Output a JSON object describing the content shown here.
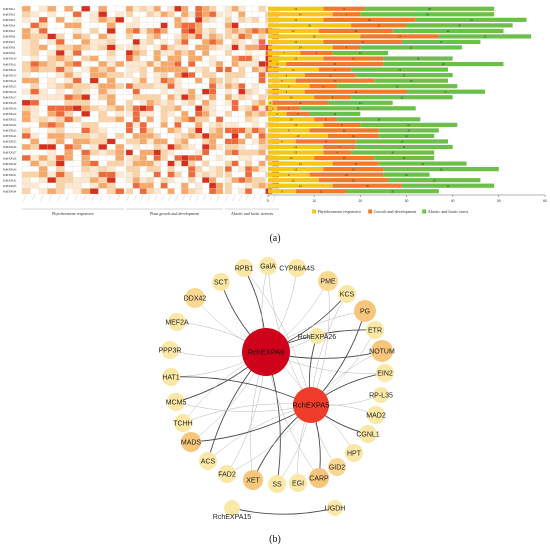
{
  "panel_a": {
    "caption": "(a)",
    "genes": [
      "RchEXPA1",
      "RchEXPA2",
      "RchEXPA3",
      "RchEXPA4",
      "RchEXPA5",
      "RchEXPA6",
      "RchEXPA7",
      "RchEXPA8",
      "RchEXPA9",
      "RchEXPA10",
      "RchEXPA11",
      "RchEXPA12",
      "RchEXPA13",
      "RchEXPA14",
      "RchEXPA15",
      "RchEXPA16",
      "RchEXPA17",
      "RchEXPA18",
      "RchEXPA19",
      "RchEXPA20",
      "RchEXPA21",
      "RchEXPA22",
      "RchEXPA23",
      "RchEXPA24",
      "RchEXPA25",
      "RchEXPA26",
      "RchEXPA27",
      "RchEXPA28",
      "RchEXPA29",
      "RchEXPA30",
      "RchEXPA31",
      "RchEXPA32",
      "RchEXPA33",
      "RchEXPA34"
    ],
    "heatmap_groups": [
      {
        "label": "Phytohormone responsive",
        "columns": 12
      },
      {
        "label": "Plant growth and development",
        "columns": 14
      },
      {
        "label": "Abiotic and biotic stresses",
        "columns": 8
      }
    ],
    "legend": [
      {
        "label": "Phytohormone responsive",
        "color": "#f5c518"
      },
      {
        "label": "Growth and development",
        "color": "#f07a2a"
      },
      {
        "label": "Abiotic and biotic stress",
        "color": "#6cc04a"
      }
    ],
    "x_ticks": [
      "0",
      "10",
      "20",
      "30",
      "40",
      "50",
      "60"
    ],
    "bars": [
      [
        12,
        9,
        28
      ],
      [
        14,
        6,
        29
      ],
      [
        12,
        20,
        24
      ],
      [
        18,
        12,
        23
      ],
      [
        11,
        16,
        24
      ],
      [
        20,
        17,
        20
      ],
      [
        12,
        17,
        17
      ],
      [
        14,
        6,
        22
      ],
      [
        7,
        7,
        12
      ],
      [
        12,
        13,
        15
      ],
      [
        4,
        21,
        26
      ],
      [
        11,
        7,
        21
      ],
      [
        8,
        11,
        21
      ],
      [
        6,
        17,
        16
      ],
      [
        9,
        6,
        26
      ],
      [
        8,
        22,
        17
      ],
      [
        10,
        8,
        22
      ],
      [
        1,
        12,
        14
      ],
      [
        2,
        5,
        25
      ],
      [
        4,
        5,
        11
      ],
      [
        10,
        5,
        18
      ],
      [
        12,
        8,
        21
      ],
      [
        9,
        15,
        13
      ],
      [
        13,
        11,
        12
      ],
      [
        6,
        13,
        20
      ],
      [
        12,
        7,
        21
      ],
      [
        12,
        6,
        18
      ],
      [
        10,
        13,
        13
      ],
      [
        14,
        10,
        19
      ],
      [
        12,
        13,
        25
      ],
      [
        9,
        16,
        10
      ],
      [
        11,
        15,
        20
      ],
      [
        14,
        15,
        20
      ],
      [
        6,
        11,
        20
      ]
    ]
  },
  "panel_b": {
    "caption": "(b)",
    "hubs": [
      {
        "id": "RchEXPA6",
        "label": "RchEXPA6",
        "color": "#d0021b"
      },
      {
        "id": "RchEXPA5",
        "label": "RchEXPA5",
        "color": "#f03c2a"
      }
    ],
    "nodes": [
      {
        "id": "RPB1",
        "label": "RPB1",
        "color": "#fbe8a6"
      },
      {
        "id": "GalA",
        "label": "GalA",
        "color": "#fbe8a6"
      },
      {
        "id": "CYP86A4S",
        "label": "CYP86A4S",
        "color": "#fbe8a6"
      },
      {
        "id": "SCT",
        "label": "SCT",
        "color": "#fbe8a6"
      },
      {
        "id": "PME",
        "label": "PME",
        "color": "#fad892"
      },
      {
        "id": "DDX42",
        "label": "DDX42",
        "color": "#fad892"
      },
      {
        "id": "KCS",
        "label": "KCS",
        "color": "#fbe8a6"
      },
      {
        "id": "PG",
        "label": "PG",
        "color": "#f8c67a"
      },
      {
        "id": "MEF2A",
        "label": "MEF2A",
        "color": "#fbe8a6"
      },
      {
        "id": "ETR",
        "label": "ETR",
        "color": "#fbe8a6"
      },
      {
        "id": "RchEXPA26",
        "label": "RchEXPA26",
        "color": "#fbe8a6"
      },
      {
        "id": "PPP3R",
        "label": "PPP3R",
        "color": "#fbe8a6"
      },
      {
        "id": "NOTUM",
        "label": "NOTUM",
        "color": "#f8c67a"
      },
      {
        "id": "HAT1",
        "label": "HAT1",
        "color": "#fbe8a6"
      },
      {
        "id": "EIN2",
        "label": "EIN2",
        "color": "#fbe8a6"
      },
      {
        "id": "MCM5",
        "label": "MCM5",
        "color": "#fbe8a6"
      },
      {
        "id": "RP-L35",
        "label": "RP-L35",
        "color": "#fbe8a6"
      },
      {
        "id": "TCHH",
        "label": "TCHH",
        "color": "#fbe8a6"
      },
      {
        "id": "MAD2",
        "label": "MAD2",
        "color": "#fbe8a6"
      },
      {
        "id": "MADS",
        "label": "MADS",
        "color": "#f8c67a"
      },
      {
        "id": "CGNL1",
        "label": "CGNL1",
        "color": "#fbe8a6"
      },
      {
        "id": "ACS",
        "label": "ACS",
        "color": "#fbe8a6"
      },
      {
        "id": "HPT",
        "label": "HPT",
        "color": "#fbe8a6"
      },
      {
        "id": "FAD2",
        "label": "FAD2",
        "color": "#fbe8a6"
      },
      {
        "id": "GID2",
        "label": "GID2",
        "color": "#fad892"
      },
      {
        "id": "XET",
        "label": "XET",
        "color": "#f8c67a"
      },
      {
        "id": "SS",
        "label": "SS",
        "color": "#fbe8a6"
      },
      {
        "id": "EGI",
        "label": "EGI",
        "color": "#fbe8a6"
      },
      {
        "id": "CARP",
        "label": "CARP",
        "color": "#f8c67a"
      },
      {
        "id": "RchEXPA15",
        "label": "RchEXPA15",
        "color": "#fbe8a6"
      },
      {
        "id": "UGDH",
        "label": "UGDH",
        "color": "#fbe8a6"
      }
    ],
    "edges": [
      [
        "RchEXPA6",
        "RPB1"
      ],
      [
        "RchEXPA6",
        "GalA"
      ],
      [
        "RchEXPA6",
        "CYP86A4S"
      ],
      [
        "RchEXPA6",
        "SCT"
      ],
      [
        "RchEXPA6",
        "PME"
      ],
      [
        "RchEXPA6",
        "DDX42"
      ],
      [
        "RchEXPA6",
        "KCS"
      ],
      [
        "RchEXPA6",
        "PG"
      ],
      [
        "RchEXPA6",
        "MEF2A"
      ],
      [
        "RchEXPA6",
        "ETR"
      ],
      [
        "RchEXPA6",
        "RchEXPA26"
      ],
      [
        "RchEXPA6",
        "PPP3R"
      ],
      [
        "RchEXPA6",
        "NOTUM"
      ],
      [
        "RchEXPA6",
        "HAT1"
      ],
      [
        "RchEXPA6",
        "EIN2"
      ],
      [
        "RchEXPA6",
        "MCM5"
      ],
      [
        "RchEXPA6",
        "TCHH"
      ],
      [
        "RchEXPA6",
        "MADS"
      ],
      [
        "RchEXPA6",
        "ACS"
      ],
      [
        "RchEXPA6",
        "FAD2"
      ],
      [
        "RchEXPA6",
        "XET"
      ],
      [
        "RchEXPA6",
        "SS"
      ],
      [
        "RchEXPA6",
        "CARP"
      ],
      [
        "RchEXPA6",
        "RchEXPA5"
      ],
      [
        "RchEXPA5",
        "PG"
      ],
      [
        "RchEXPA5",
        "NOTUM"
      ],
      [
        "RchEXPA5",
        "ETR"
      ],
      [
        "RchEXPA5",
        "EIN2"
      ],
      [
        "RchEXPA5",
        "RP-L35"
      ],
      [
        "RchEXPA5",
        "MAD2"
      ],
      [
        "RchEXPA5",
        "CGNL1"
      ],
      [
        "RchEXPA5",
        "HPT"
      ],
      [
        "RchEXPA5",
        "GID2"
      ],
      [
        "RchEXPA5",
        "CARP"
      ],
      [
        "RchEXPA5",
        "EGI"
      ],
      [
        "RchEXPA5",
        "SS"
      ],
      [
        "RchEXPA5",
        "XET"
      ],
      [
        "RchEXPA5",
        "FAD2"
      ],
      [
        "RchEXPA5",
        "ACS"
      ],
      [
        "RchEXPA5",
        "MADS"
      ],
      [
        "RchEXPA5",
        "TCHH"
      ],
      [
        "RchEXPA5",
        "MCM5"
      ],
      [
        "RchEXPA5",
        "HAT1"
      ],
      [
        "RchEXPA5",
        "KCS"
      ],
      [
        "RchEXPA5",
        "PME"
      ],
      [
        "RchEXPA5",
        "RchEXPA26"
      ],
      [
        "RchEXPA5",
        "RPB1"
      ],
      [
        "RchEXPA5",
        "GalA"
      ],
      [
        "RchEXPA15",
        "UGDH"
      ]
    ]
  }
}
